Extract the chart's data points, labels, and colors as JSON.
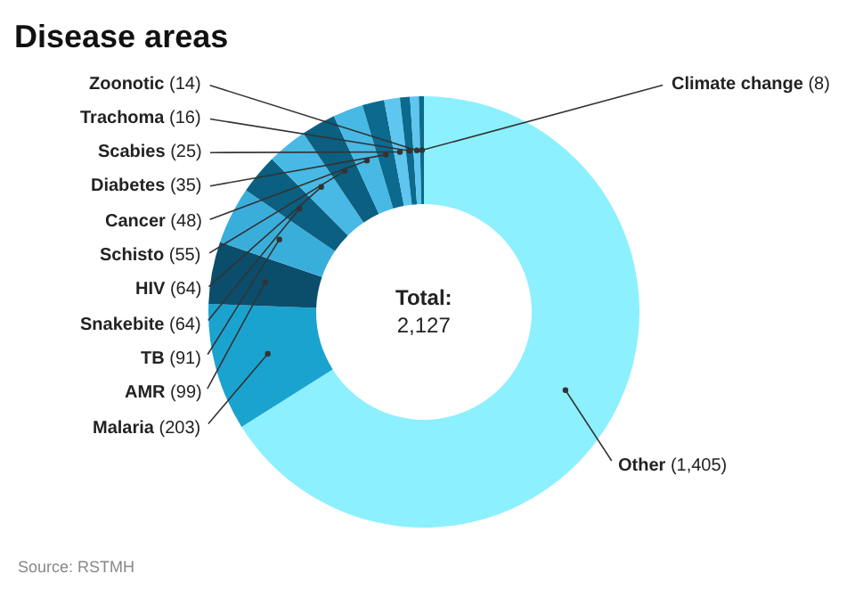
{
  "chart_data": {
    "type": "donut",
    "title": "Disease areas",
    "categories": [
      "Other",
      "Malaria",
      "AMR",
      "TB",
      "Snakebite",
      "HIV",
      "Schisto",
      "Cancer",
      "Diabetes",
      "Scabies",
      "Trachoma",
      "Zoonotic",
      "Climate change"
    ],
    "values": [
      1405,
      203,
      99,
      91,
      64,
      64,
      55,
      48,
      35,
      25,
      16,
      14,
      8
    ],
    "colors": [
      "#8cf0ff",
      "#1ba3d0",
      "#0a4e6c",
      "#3aaedb",
      "#0b5f80",
      "#47b9e4",
      "#0b5f80",
      "#47b9e4",
      "#0b6a8e",
      "#5ec6ef",
      "#0b6a8e",
      "#5ec6ef",
      "#0b6a8e"
    ],
    "value_labels": [
      "(1,405)",
      "(203)",
      "(99)",
      "(91)",
      "(64)",
      "(64)",
      "(55)",
      "(48)",
      "(35)",
      "(25)",
      "(16)",
      "(14)",
      "(8)"
    ],
    "legend": false,
    "annotations": [
      "Total:\n2,127",
      "Source: RSTMH"
    ]
  }
}
